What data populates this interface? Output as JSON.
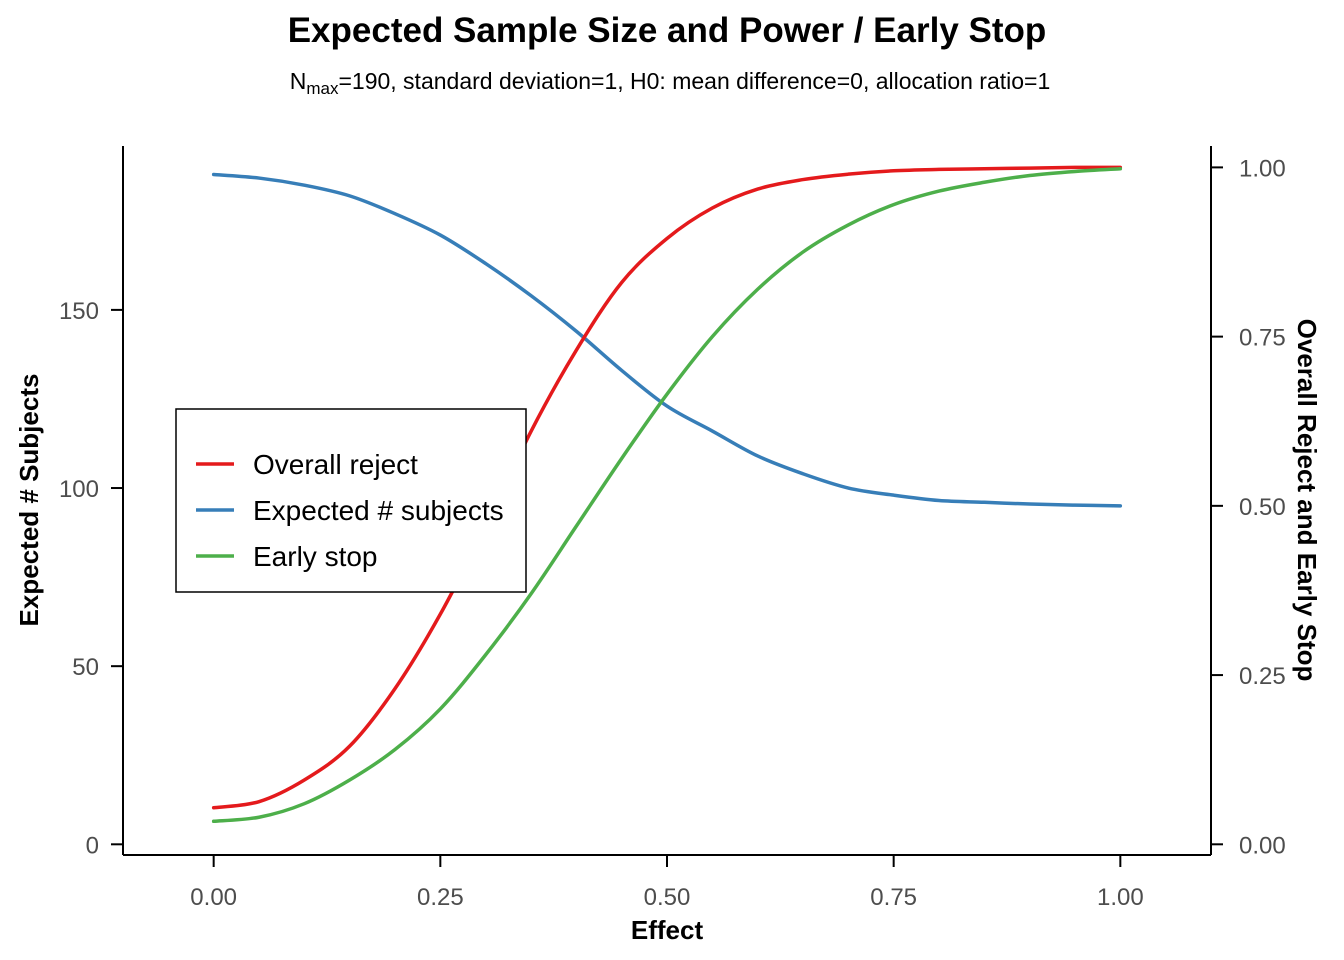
{
  "chart_data": {
    "type": "line",
    "title": "Expected Sample Size and Power / Early Stop",
    "subtitle": {
      "prefix": "N",
      "subscript": "max",
      "rest": "=190, standard deviation=1, H0: mean difference=0, allocation ratio=1"
    },
    "xlabel": "Effect",
    "ylabel_left": "Expected # Subjects",
    "ylabel_right": "Overall Reject and Early Stop",
    "xlim": [
      -0.1,
      1.1
    ],
    "ylim_left": [
      -3,
      196
    ],
    "ylim_right": [
      -0.0158,
      1.0316
    ],
    "x_ticks": [
      0,
      0.25,
      0.5,
      0.75,
      1
    ],
    "x_tick_labels": [
      "0.00",
      "0.25",
      "0.50",
      "0.75",
      "1.00"
    ],
    "left_ticks": [
      0,
      50,
      100,
      150
    ],
    "left_tick_labels": [
      "0",
      "50",
      "100",
      "150"
    ],
    "right_ticks": [
      0,
      0.25,
      0.5,
      0.75,
      1
    ],
    "right_tick_labels": [
      "0.00",
      "0.25",
      "0.50",
      "0.75",
      "1.00"
    ],
    "x": [
      0,
      0.05,
      0.1,
      0.15,
      0.2,
      0.25,
      0.3,
      0.35,
      0.4,
      0.45,
      0.5,
      0.55,
      0.6,
      0.65,
      0.7,
      0.75,
      0.8,
      0.85,
      0.9,
      0.95,
      1.0
    ],
    "series": [
      {
        "name": "Overall reject",
        "axis": "right",
        "color": "#E41A1C",
        "values": [
          0.054,
          0.063,
          0.095,
          0.145,
          0.23,
          0.34,
          0.47,
          0.61,
          0.73,
          0.83,
          0.895,
          0.94,
          0.968,
          0.982,
          0.99,
          0.995,
          0.997,
          0.998,
          0.999,
          1.0,
          1.0
        ]
      },
      {
        "name": "Expected # subjects",
        "axis": "left",
        "color": "#377EB8",
        "values": [
          188,
          187,
          185,
          182,
          177,
          171,
          163,
          154,
          144,
          133,
          123,
          116,
          109,
          104,
          100,
          98,
          96.5,
          96,
          95.5,
          95.2,
          95
        ]
      },
      {
        "name": "Early stop",
        "axis": "right",
        "color": "#4DAF4A",
        "values": [
          0.034,
          0.04,
          0.06,
          0.095,
          0.14,
          0.2,
          0.28,
          0.37,
          0.47,
          0.57,
          0.665,
          0.75,
          0.82,
          0.875,
          0.915,
          0.945,
          0.965,
          0.978,
          0.988,
          0.994,
          0.998
        ]
      }
    ],
    "legend": {
      "placement": "center-left",
      "entries": [
        "Overall reject",
        "Expected # subjects",
        "Early stop"
      ]
    },
    "grid": false
  }
}
